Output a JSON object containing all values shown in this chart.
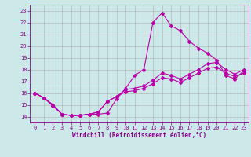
{
  "background_color": "#cce8e8",
  "grid_color": "#b0b0b0",
  "line_color": "#bb00aa",
  "xlabel": "Windchill (Refroidissement éolien,°C)",
  "xlim": [
    -0.5,
    23.5
  ],
  "ylim": [
    13.5,
    23.5
  ],
  "yticks": [
    14,
    15,
    16,
    17,
    18,
    19,
    20,
    21,
    22,
    23
  ],
  "xticks": [
    0,
    1,
    2,
    3,
    4,
    5,
    6,
    7,
    8,
    9,
    10,
    11,
    12,
    13,
    14,
    15,
    16,
    17,
    18,
    19,
    20,
    21,
    22,
    23
  ],
  "line1_x": [
    0,
    1,
    2,
    3,
    4,
    5,
    6,
    7,
    8,
    9,
    10,
    11,
    12,
    13,
    14,
    15,
    16,
    17,
    18,
    19,
    20,
    21,
    22,
    23
  ],
  "line1_y": [
    16.0,
    15.6,
    14.9,
    14.2,
    14.1,
    14.1,
    14.2,
    14.2,
    14.3,
    15.5,
    16.4,
    17.5,
    18.0,
    22.0,
    22.8,
    21.7,
    21.3,
    20.4,
    19.8,
    19.4,
    18.8,
    17.5,
    17.2,
    17.9
  ],
  "line2_x": [
    0,
    1,
    2,
    3,
    4,
    5,
    6,
    7,
    8,
    9,
    10,
    11,
    12,
    13,
    14,
    15,
    16,
    17,
    18,
    19,
    20,
    21,
    22,
    23
  ],
  "line2_y": [
    16.0,
    15.6,
    15.0,
    14.2,
    14.1,
    14.1,
    14.2,
    14.4,
    15.3,
    15.7,
    16.3,
    16.4,
    16.6,
    17.1,
    17.7,
    17.5,
    17.2,
    17.6,
    18.0,
    18.5,
    18.6,
    18.0,
    17.6,
    18.0
  ],
  "line3_x": [
    0,
    1,
    2,
    3,
    4,
    5,
    6,
    7,
    8,
    9,
    10,
    11,
    12,
    13,
    14,
    15,
    16,
    17,
    18,
    19,
    20,
    21,
    22,
    23
  ],
  "line3_y": [
    16.0,
    15.6,
    15.0,
    14.2,
    14.1,
    14.1,
    14.2,
    14.4,
    15.3,
    15.7,
    16.1,
    16.2,
    16.4,
    16.8,
    17.3,
    17.2,
    16.9,
    17.3,
    17.7,
    18.1,
    18.2,
    17.7,
    17.4,
    17.7
  ],
  "xlabel_fontsize": 5.5,
  "tick_fontsize": 5,
  "tick_color": "#880088",
  "spine_color": "#880088"
}
